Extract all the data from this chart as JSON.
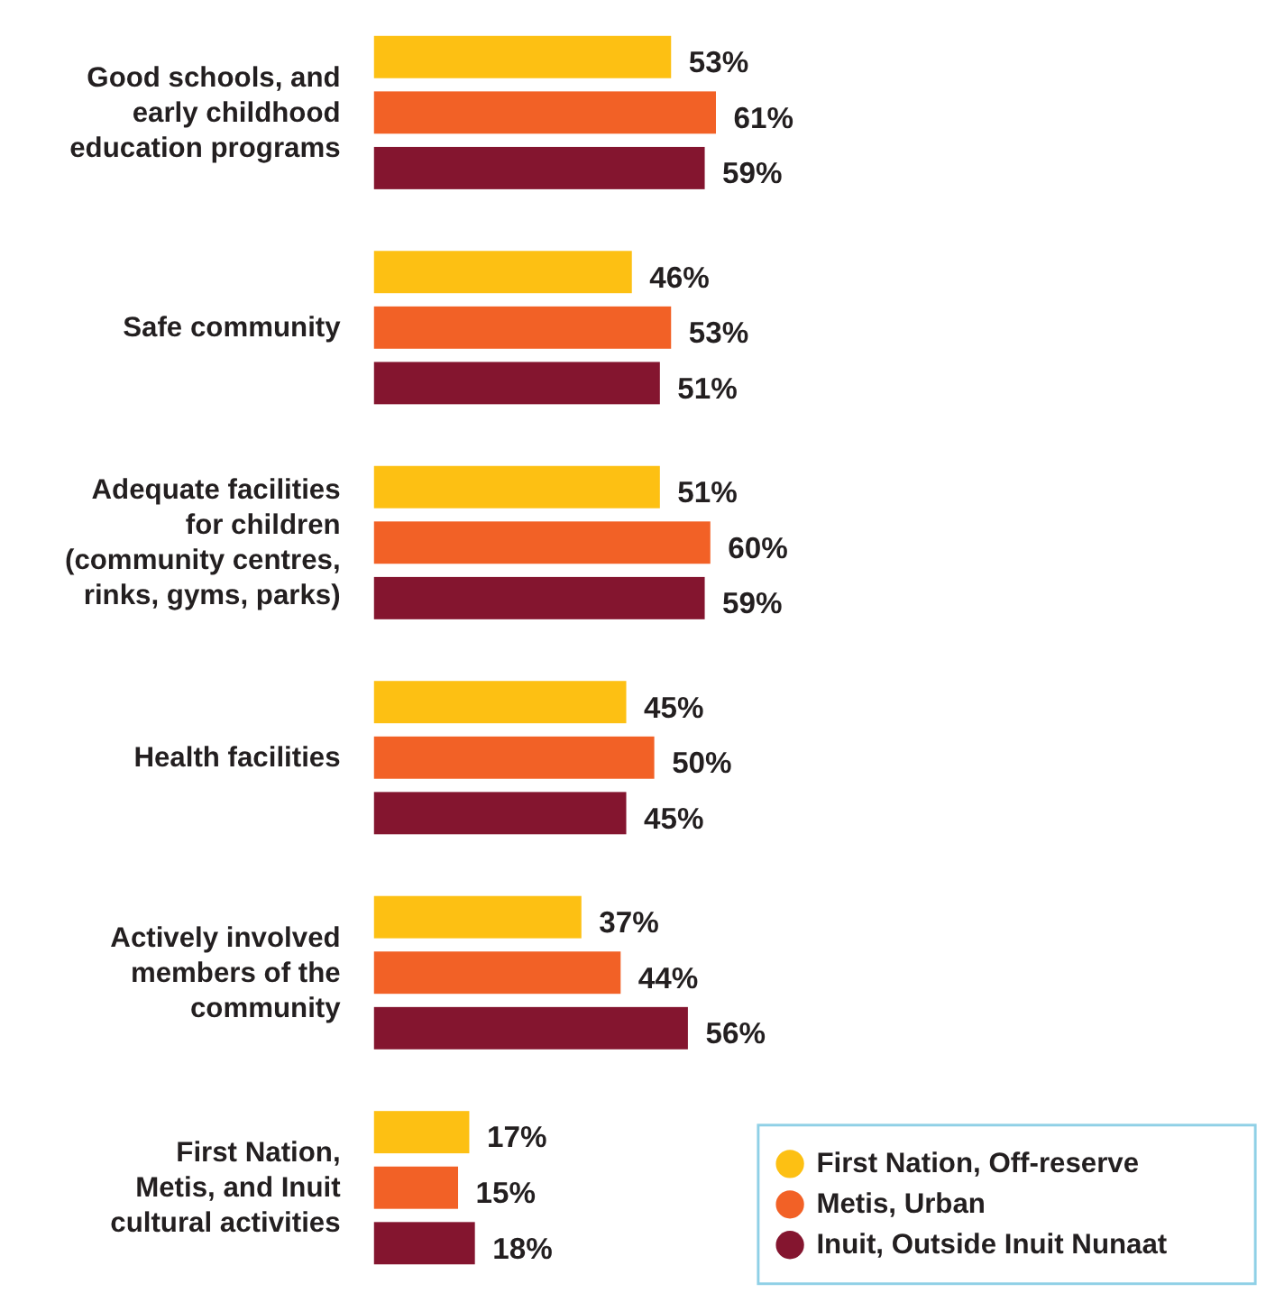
{
  "chart_data": {
    "type": "bar",
    "orientation": "horizontal",
    "categories": [
      "Good schools, and early childhood education programs",
      "Safe community",
      "Adequate facilities for children (community centres, rinks, gyms, parks)",
      "Health facilities",
      "Actively involved members of the community",
      "First Nation, Metis, and Inuit cultural activities"
    ],
    "tick_labels": "y",
    "legend": "bottom right",
    "series": [
      {
        "name": "First Nation, Off-reserve",
        "color": "#fdc013",
        "values": [
          53,
          46,
          51,
          45,
          37,
          17
        ],
        "value_labels": [
          "53%",
          "46%",
          "51%",
          "45%",
          "37%",
          "17%"
        ]
      },
      {
        "name": "Metis, Urban",
        "color": "#f26126",
        "values": [
          61,
          53,
          60,
          50,
          44,
          15
        ],
        "value_labels": [
          "61%",
          "53%",
          "60%",
          "50%",
          "44%",
          "15%"
        ]
      },
      {
        "name": "Inuit, Outside Inuit Nunaat",
        "color": "#84152f",
        "values": [
          59,
          51,
          59,
          45,
          56,
          18
        ],
        "value_labels": [
          "59%",
          "51%",
          "59%",
          "45%",
          "56%",
          "18%"
        ]
      }
    ]
  }
}
